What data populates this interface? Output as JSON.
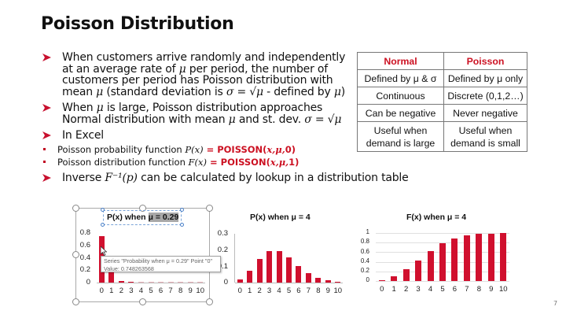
{
  "slide": {
    "title": "Poisson Distribution",
    "page_number": "7",
    "accent_color": "#cc1122"
  },
  "bullets": {
    "b1": {
      "l1": "When customers arrive randomly and independently",
      "l2a": "at an average rate of ",
      "l2m": "μ",
      "l2b": " per period, the number of",
      "l3": "customers per period has Poisson distribution with",
      "l4a": "mean ",
      "l4m": "μ",
      "l4b": " (standard deviation is ",
      "l4m2": "σ = √μ",
      "l4c": " - defined by ",
      "l4m3": "μ",
      "l4d": ")"
    },
    "b2": {
      "l1a": "When ",
      "l1m": "μ",
      "l1b": " is large, Poisson distribution approaches",
      "l2a": "Normal distribution with mean ",
      "l2m": "μ",
      "l2b": " and st. dev. ",
      "l2m2": "σ = √μ"
    },
    "b3": {
      "label": "In Excel",
      "sub1": {
        "text": "Poisson probability function ",
        "math": "P(x)",
        "eq": " = POISSON(",
        "args": "x,μ,",
        "end": "0)"
      },
      "sub2": {
        "text": "Poisson distribution function ",
        "math": "F(x)",
        "eq": " = POISSON(",
        "args": "x,μ,",
        "end": "1)"
      }
    },
    "b4": {
      "a": "Inverse ",
      "m": "F⁻¹(p)",
      "b": " can be calculated by lookup in a distribution table"
    }
  },
  "table": {
    "headers": [
      "Normal",
      "Poisson"
    ],
    "rows": [
      [
        "Defined by μ & σ",
        "Defined by μ only"
      ],
      [
        "Continuous",
        "Discrete (0,1,2…)"
      ],
      [
        "Can be negative",
        "Never negative"
      ],
      [
        "Useful when demand is large",
        "Useful when demand is small"
      ]
    ]
  },
  "chart_data": [
    {
      "type": "bar",
      "title": "P(x) when μ = 0.29",
      "title_prefix": "P(x) when ",
      "title_highlight": "μ = 0.29",
      "categories": [
        "0",
        "1",
        "2",
        "3",
        "4",
        "5",
        "6",
        "7",
        "8",
        "9",
        "10"
      ],
      "values": [
        0.748,
        0.217,
        0.031,
        0.003,
        0.0002,
        0,
        0,
        0,
        0,
        0,
        0
      ],
      "yticks": [
        "0.8",
        "0.6",
        "0.4",
        "0.2",
        "0"
      ],
      "ylim": [
        0,
        0.8
      ],
      "xlabel": "",
      "ylabel": "",
      "grid": false,
      "selected": true,
      "tooltip": {
        "line1": "Series \"Probability when μ = 0.29\" Point \"0\"",
        "line2": "Value: 0.748263568"
      }
    },
    {
      "type": "bar",
      "title": "P(x) when μ = 4",
      "categories": [
        "0",
        "1",
        "2",
        "3",
        "4",
        "5",
        "6",
        "7",
        "8",
        "9",
        "10"
      ],
      "values": [
        0.018,
        0.073,
        0.147,
        0.195,
        0.195,
        0.156,
        0.104,
        0.06,
        0.03,
        0.013,
        0.005
      ],
      "yticks": [
        "0.3",
        "0.2",
        "0.1",
        "0"
      ],
      "ylim": [
        0,
        0.3
      ],
      "xlabel": "",
      "ylabel": "",
      "grid": false
    },
    {
      "type": "bar",
      "title": "F(x) when μ = 4",
      "categories": [
        "0",
        "1",
        "2",
        "3",
        "4",
        "5",
        "6",
        "7",
        "8",
        "9",
        "10"
      ],
      "values": [
        0.018,
        0.092,
        0.238,
        0.433,
        0.629,
        0.785,
        0.889,
        0.949,
        0.979,
        0.992,
        0.997
      ],
      "yticks": [
        "1",
        "0.8",
        "0.6",
        "0.4",
        "0.2",
        "0"
      ],
      "ylim": [
        0,
        1
      ],
      "xlabel": "",
      "ylabel": "",
      "grid": true
    }
  ]
}
